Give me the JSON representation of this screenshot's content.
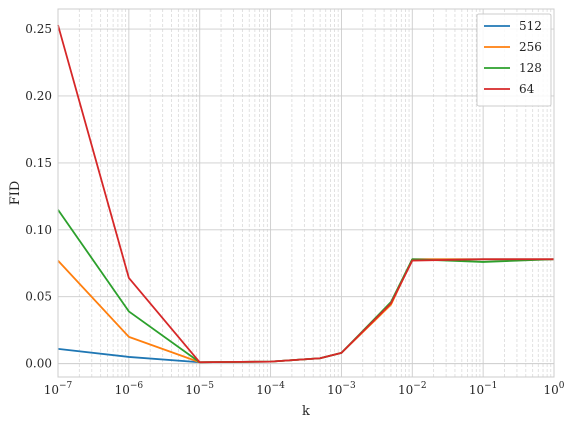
{
  "chart_data": {
    "type": "line",
    "title": "",
    "xlabel": "k",
    "ylabel": "FID",
    "xscale": "log",
    "xlim": [
      1e-07,
      1
    ],
    "ylim": [
      -0.01,
      0.265
    ],
    "x_ticks": [
      {
        "value": 1e-07,
        "base": "10",
        "exp": "−7"
      },
      {
        "value": 1e-06,
        "base": "10",
        "exp": "−6"
      },
      {
        "value": 1e-05,
        "base": "10",
        "exp": "−5"
      },
      {
        "value": 0.0001,
        "base": "10",
        "exp": "−4"
      },
      {
        "value": 0.001,
        "base": "10",
        "exp": "−3"
      },
      {
        "value": 0.01,
        "base": "10",
        "exp": "−2"
      },
      {
        "value": 0.1,
        "base": "10",
        "exp": "−1"
      },
      {
        "value": 1,
        "base": "10",
        "exp": "0"
      }
    ],
    "y_ticks": [
      {
        "value": 0.0,
        "label": "0.00"
      },
      {
        "value": 0.05,
        "label": "0.05"
      },
      {
        "value": 0.1,
        "label": "0.10"
      },
      {
        "value": 0.15,
        "label": "0.15"
      },
      {
        "value": 0.2,
        "label": "0.20"
      },
      {
        "value": 0.25,
        "label": "0.25"
      }
    ],
    "grid": true,
    "minor_grid": true,
    "legend_position": "top-right",
    "x": [
      1e-07,
      1e-06,
      1e-05,
      0.0001,
      0.0005,
      0.001,
      0.005,
      0.01,
      0.1,
      1
    ],
    "series": [
      {
        "name": "512",
        "color": "#1f77b4",
        "values": [
          0.011,
          0.005,
          0.001,
          0.0015,
          0.004,
          0.008,
          0.045,
          0.078,
          0.078,
          0.078
        ]
      },
      {
        "name": "256",
        "color": "#ff7f0e",
        "values": [
          0.077,
          0.02,
          0.001,
          0.0015,
          0.004,
          0.008,
          0.044,
          0.078,
          0.078,
          0.078
        ]
      },
      {
        "name": "128",
        "color": "#2ca02c",
        "values": [
          0.115,
          0.039,
          0.001,
          0.0015,
          0.004,
          0.008,
          0.046,
          0.078,
          0.076,
          0.078
        ]
      },
      {
        "name": "64",
        "color": "#d62728",
        "values": [
          0.253,
          0.064,
          0.001,
          0.0015,
          0.004,
          0.008,
          0.045,
          0.077,
          0.078,
          0.078
        ]
      }
    ]
  }
}
